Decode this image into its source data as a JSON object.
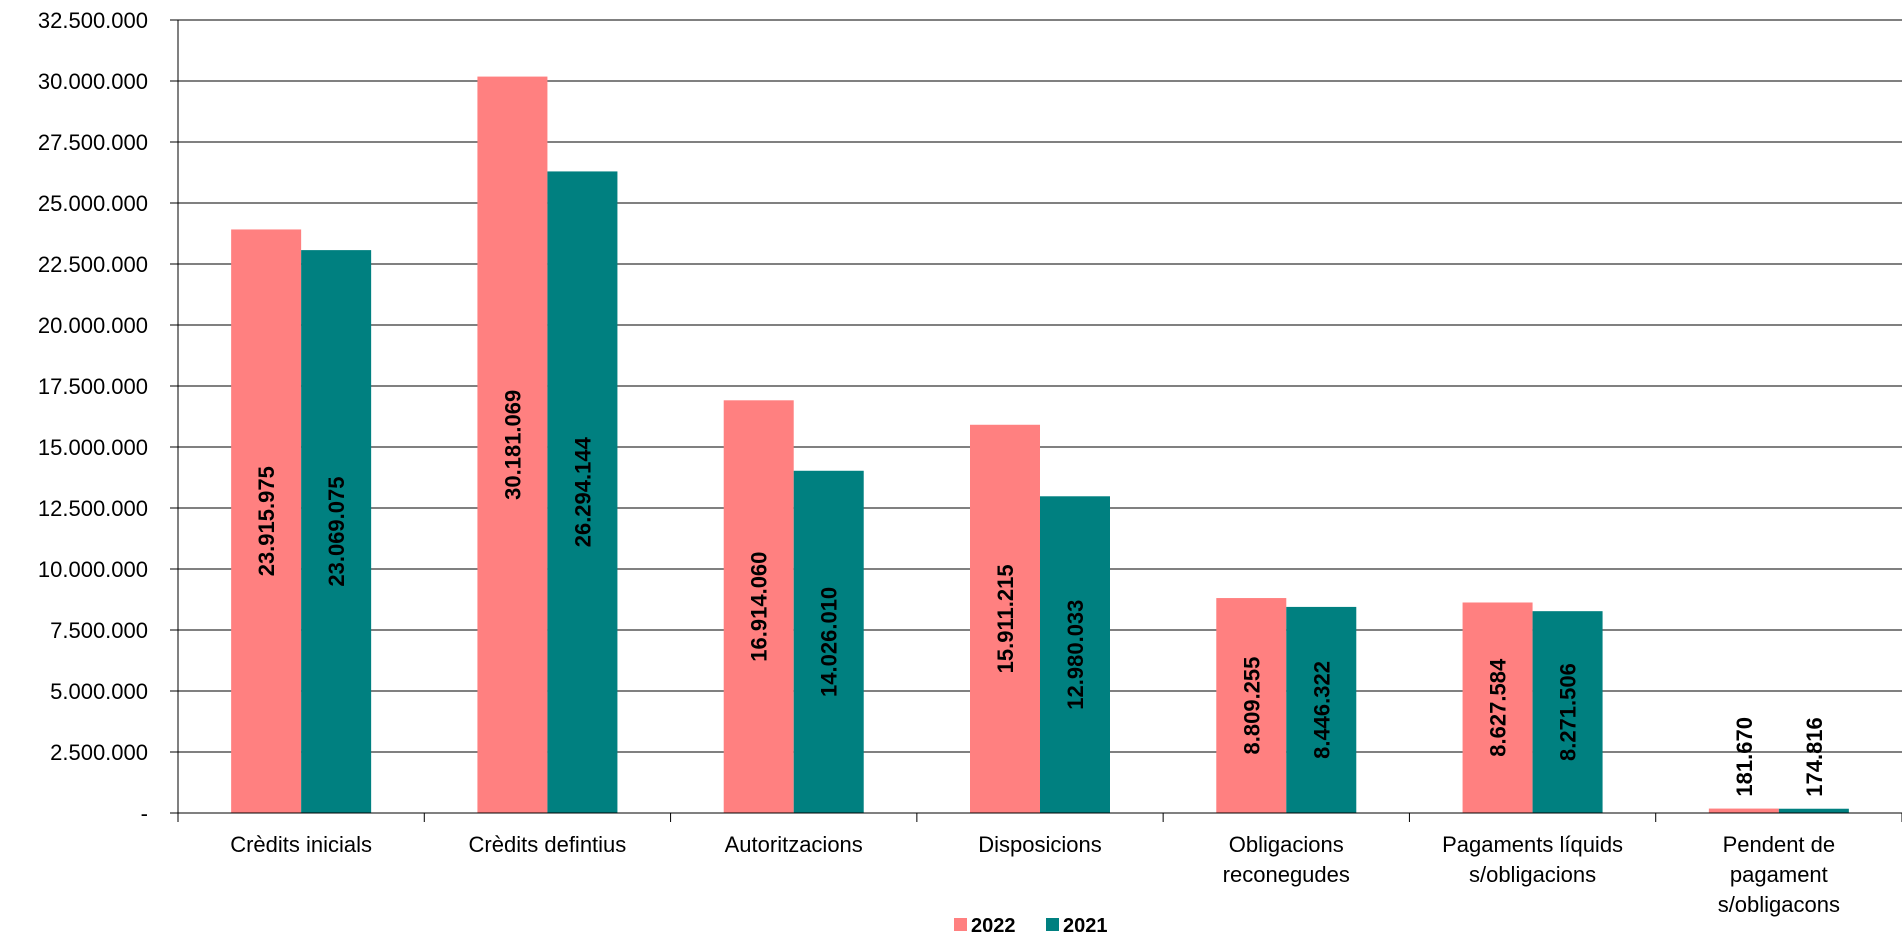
{
  "chart_data": {
    "type": "bar",
    "title": "",
    "xlabel": "",
    "ylabel": "",
    "ylim": [
      0,
      32500000
    ],
    "yticks": [
      0,
      2500000,
      5000000,
      7500000,
      10000000,
      12500000,
      15000000,
      17500000,
      20000000,
      22500000,
      25000000,
      27500000,
      30000000,
      32500000
    ],
    "ytick_labels": [
      "-",
      "2.500.000",
      "5.000.000",
      "7.500.000",
      "10.000.000",
      "12.500.000",
      "15.000.000",
      "17.500.000",
      "20.000.000",
      "22.500.000",
      "25.000.000",
      "27.500.000",
      "30.000.000",
      "32.500.000"
    ],
    "grid": true,
    "legend_position": "bottom",
    "categories": [
      [
        "Crèdits inicials"
      ],
      [
        "Crèdits defintius"
      ],
      [
        "Autoritzacions"
      ],
      [
        "Disposicions"
      ],
      [
        "Obligacions",
        "reconegudes"
      ],
      [
        "Pagaments líquids",
        "s/obligacions"
      ],
      [
        "Pendent de",
        "pagament",
        "s/obligacons"
      ]
    ],
    "series": [
      {
        "name": "2022",
        "color": "#FF8080",
        "values": [
          23915975,
          30181069,
          16914060,
          15911215,
          8809255,
          8627584,
          181670
        ],
        "labels": [
          "23.915.975",
          "30.181.069",
          "16.914.060",
          "15.911.215",
          "8.809.255",
          "8.627.584",
          "181.670"
        ]
      },
      {
        "name": "2021",
        "color": "#008080",
        "values": [
          23069075,
          26294144,
          14026010,
          12980033,
          8446322,
          8271506,
          174816
        ],
        "labels": [
          "23.069.075",
          "26.294.144",
          "14.026.010",
          "12.980.033",
          "8.446.322",
          "8.271.506",
          "174.816"
        ]
      }
    ]
  }
}
